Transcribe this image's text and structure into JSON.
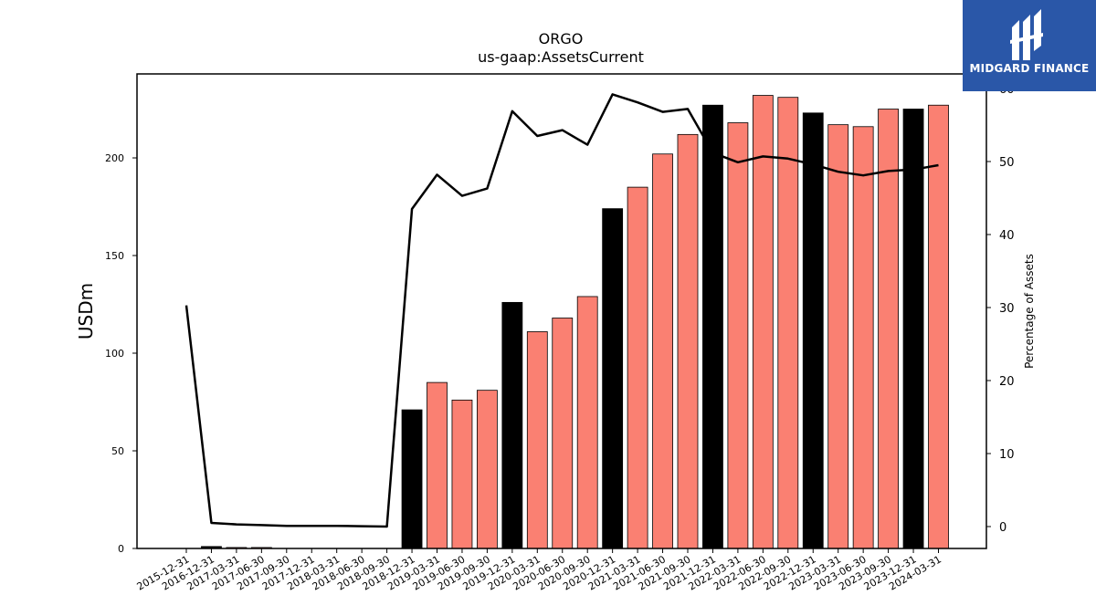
{
  "chart_data": {
    "type": "bar",
    "title": "ORGO",
    "subtitle": "us-gaap:AssetsCurrent",
    "ylabel": "USDm",
    "y2label": "Percentage of Assets",
    "ylim": [
      0,
      243
    ],
    "y2lim": [
      -3,
      62
    ],
    "yticks": [
      0,
      50,
      100,
      150,
      200
    ],
    "y2ticks": [
      0,
      10,
      20,
      30,
      40,
      50,
      60
    ],
    "categories": [
      "2015-12-31",
      "2016-12-31",
      "2017-03-31",
      "2017-06-30",
      "2017-09-30",
      "2017-12-31",
      "2018-03-31",
      "2018-06-30",
      "2018-09-30",
      "2018-12-31",
      "2019-03-31",
      "2019-06-30",
      "2019-09-30",
      "2019-12-31",
      "2020-03-31",
      "2020-06-30",
      "2020-09-30",
      "2020-12-31",
      "2021-03-31",
      "2021-06-30",
      "2021-09-30",
      "2021-12-31",
      "2022-03-31",
      "2022-06-30",
      "2022-09-30",
      "2022-12-31",
      "2023-03-31",
      "2023-06-30",
      "2023-09-30",
      "2023-12-31",
      "2024-03-31"
    ],
    "series": [
      {
        "kind": "bar",
        "values": [
          0,
          1,
          0.5,
          0.5,
          0,
          0,
          0,
          0,
          0,
          71,
          85,
          76,
          81,
          126,
          111,
          118,
          129,
          174,
          185,
          202,
          212,
          227,
          218,
          232,
          231,
          223,
          217,
          216,
          225,
          225,
          227
        ],
        "annual_flags": [
          true,
          true,
          false,
          false,
          false,
          true,
          false,
          false,
          false,
          true,
          false,
          false,
          false,
          true,
          false,
          false,
          false,
          true,
          false,
          false,
          false,
          true,
          false,
          false,
          false,
          true,
          false,
          false,
          false,
          true,
          false
        ]
      },
      {
        "kind": "line",
        "axis": "right",
        "values": [
          30.3,
          0.5,
          0.3,
          0.2,
          0.1,
          0.1,
          0.1,
          0.05,
          0.0,
          43.5,
          48.2,
          45.3,
          46.3,
          56.9,
          53.5,
          54.3,
          52.3,
          59.2,
          58.1,
          56.8,
          57.2,
          51.2,
          49.9,
          50.7,
          50.4,
          49.6,
          48.6,
          48.1,
          48.7,
          48.9,
          49.5
        ]
      }
    ],
    "colors": {
      "annual": "#000000",
      "quarterly": "#fa8072",
      "line": "#000000"
    },
    "grid": false
  },
  "logo": {
    "text": "MIDGARD FINANCE",
    "background": "#2a57a8"
  }
}
